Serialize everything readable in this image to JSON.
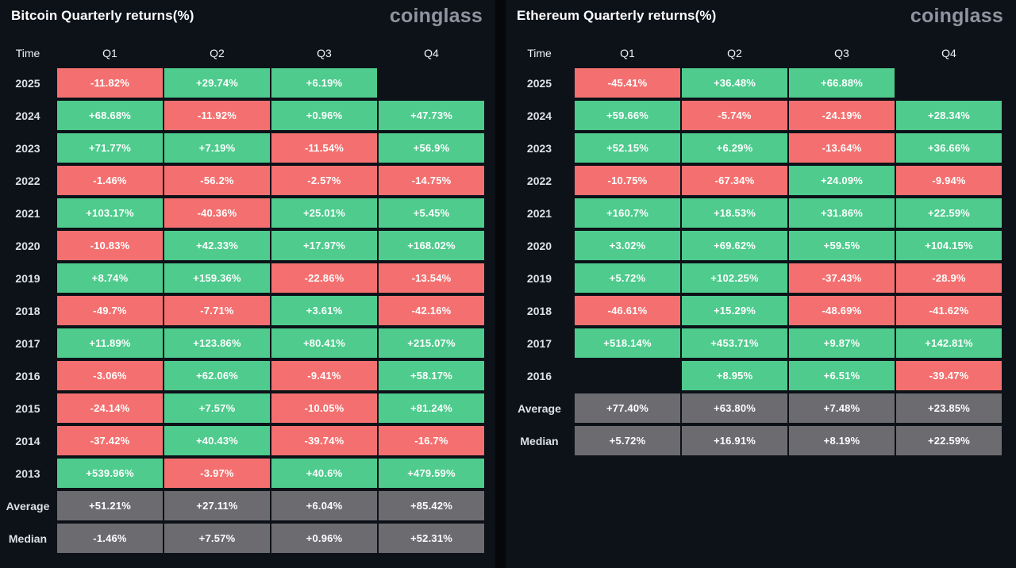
{
  "colors": {
    "green": "#4ECB8D",
    "red": "#F47070",
    "gray": "#6C6C70",
    "panel": "#0D1118",
    "divider": "#05070B",
    "brand": "#8E95A0"
  },
  "chart_data": [
    {
      "type": "table",
      "title": "Bitcoin Quarterly returns(%)",
      "brand": "coinglass",
      "columns": [
        "Time",
        "Q1",
        "Q2",
        "Q3",
        "Q4"
      ],
      "legend": {
        "pos": "positive return (green)",
        "neg": "negative return (red)",
        "stat": "summary row (gray)"
      },
      "rows": [
        {
          "label": "2025",
          "values": [
            "-11.82%",
            "+29.74%",
            "+6.19%",
            ""
          ],
          "kinds": [
            "neg",
            "pos",
            "pos",
            "empty"
          ]
        },
        {
          "label": "2024",
          "values": [
            "+68.68%",
            "-11.92%",
            "+0.96%",
            "+47.73%"
          ],
          "kinds": [
            "pos",
            "neg",
            "pos",
            "pos"
          ]
        },
        {
          "label": "2023",
          "values": [
            "+71.77%",
            "+7.19%",
            "-11.54%",
            "+56.9%"
          ],
          "kinds": [
            "pos",
            "pos",
            "neg",
            "pos"
          ]
        },
        {
          "label": "2022",
          "values": [
            "-1.46%",
            "-56.2%",
            "-2.57%",
            "-14.75%"
          ],
          "kinds": [
            "neg",
            "neg",
            "neg",
            "neg"
          ]
        },
        {
          "label": "2021",
          "values": [
            "+103.17%",
            "-40.36%",
            "+25.01%",
            "+5.45%"
          ],
          "kinds": [
            "pos",
            "neg",
            "pos",
            "pos"
          ]
        },
        {
          "label": "2020",
          "values": [
            "-10.83%",
            "+42.33%",
            "+17.97%",
            "+168.02%"
          ],
          "kinds": [
            "neg",
            "pos",
            "pos",
            "pos"
          ]
        },
        {
          "label": "2019",
          "values": [
            "+8.74%",
            "+159.36%",
            "-22.86%",
            "-13.54%"
          ],
          "kinds": [
            "pos",
            "pos",
            "neg",
            "neg"
          ]
        },
        {
          "label": "2018",
          "values": [
            "-49.7%",
            "-7.71%",
            "+3.61%",
            "-42.16%"
          ],
          "kinds": [
            "neg",
            "neg",
            "pos",
            "neg"
          ]
        },
        {
          "label": "2017",
          "values": [
            "+11.89%",
            "+123.86%",
            "+80.41%",
            "+215.07%"
          ],
          "kinds": [
            "pos",
            "pos",
            "pos",
            "pos"
          ]
        },
        {
          "label": "2016",
          "values": [
            "-3.06%",
            "+62.06%",
            "-9.41%",
            "+58.17%"
          ],
          "kinds": [
            "neg",
            "pos",
            "neg",
            "pos"
          ]
        },
        {
          "label": "2015",
          "values": [
            "-24.14%",
            "+7.57%",
            "-10.05%",
            "+81.24%"
          ],
          "kinds": [
            "neg",
            "pos",
            "neg",
            "pos"
          ]
        },
        {
          "label": "2014",
          "values": [
            "-37.42%",
            "+40.43%",
            "-39.74%",
            "-16.7%"
          ],
          "kinds": [
            "neg",
            "pos",
            "neg",
            "neg"
          ]
        },
        {
          "label": "2013",
          "values": [
            "+539.96%",
            "-3.97%",
            "+40.6%",
            "+479.59%"
          ],
          "kinds": [
            "pos",
            "neg",
            "pos",
            "pos"
          ]
        },
        {
          "label": "Average",
          "values": [
            "+51.21%",
            "+27.11%",
            "+6.04%",
            "+85.42%"
          ],
          "kinds": [
            "stat",
            "stat",
            "stat",
            "stat"
          ]
        },
        {
          "label": "Median",
          "values": [
            "-1.46%",
            "+7.57%",
            "+0.96%",
            "+52.31%"
          ],
          "kinds": [
            "stat",
            "stat",
            "stat",
            "stat"
          ]
        }
      ]
    },
    {
      "type": "table",
      "title": "Ethereum Quarterly returns(%)",
      "brand": "coinglass",
      "columns": [
        "Time",
        "Q1",
        "Q2",
        "Q3",
        "Q4"
      ],
      "legend": {
        "pos": "positive return (green)",
        "neg": "negative return (red)",
        "stat": "summary row (gray)"
      },
      "rows": [
        {
          "label": "2025",
          "values": [
            "-45.41%",
            "+36.48%",
            "+66.88%",
            ""
          ],
          "kinds": [
            "neg",
            "pos",
            "pos",
            "empty"
          ]
        },
        {
          "label": "2024",
          "values": [
            "+59.66%",
            "-5.74%",
            "-24.19%",
            "+28.34%"
          ],
          "kinds": [
            "pos",
            "neg",
            "neg",
            "pos"
          ]
        },
        {
          "label": "2023",
          "values": [
            "+52.15%",
            "+6.29%",
            "-13.64%",
            "+36.66%"
          ],
          "kinds": [
            "pos",
            "pos",
            "neg",
            "pos"
          ]
        },
        {
          "label": "2022",
          "values": [
            "-10.75%",
            "-67.34%",
            "+24.09%",
            "-9.94%"
          ],
          "kinds": [
            "neg",
            "neg",
            "pos",
            "neg"
          ]
        },
        {
          "label": "2021",
          "values": [
            "+160.7%",
            "+18.53%",
            "+31.86%",
            "+22.59%"
          ],
          "kinds": [
            "pos",
            "pos",
            "pos",
            "pos"
          ]
        },
        {
          "label": "2020",
          "values": [
            "+3.02%",
            "+69.62%",
            "+59.5%",
            "+104.15%"
          ],
          "kinds": [
            "pos",
            "pos",
            "pos",
            "pos"
          ]
        },
        {
          "label": "2019",
          "values": [
            "+5.72%",
            "+102.25%",
            "-37.43%",
            "-28.9%"
          ],
          "kinds": [
            "pos",
            "pos",
            "neg",
            "neg"
          ]
        },
        {
          "label": "2018",
          "values": [
            "-46.61%",
            "+15.29%",
            "-48.69%",
            "-41.62%"
          ],
          "kinds": [
            "neg",
            "pos",
            "neg",
            "neg"
          ]
        },
        {
          "label": "2017",
          "values": [
            "+518.14%",
            "+453.71%",
            "+9.87%",
            "+142.81%"
          ],
          "kinds": [
            "pos",
            "pos",
            "pos",
            "pos"
          ]
        },
        {
          "label": "2016",
          "values": [
            "",
            "+8.95%",
            "+6.51%",
            "-39.47%"
          ],
          "kinds": [
            "empty",
            "pos",
            "pos",
            "neg"
          ]
        },
        {
          "label": "Average",
          "values": [
            "+77.40%",
            "+63.80%",
            "+7.48%",
            "+23.85%"
          ],
          "kinds": [
            "stat",
            "stat",
            "stat",
            "stat"
          ]
        },
        {
          "label": "Median",
          "values": [
            "+5.72%",
            "+16.91%",
            "+8.19%",
            "+22.59%"
          ],
          "kinds": [
            "stat",
            "stat",
            "stat",
            "stat"
          ]
        }
      ]
    }
  ]
}
